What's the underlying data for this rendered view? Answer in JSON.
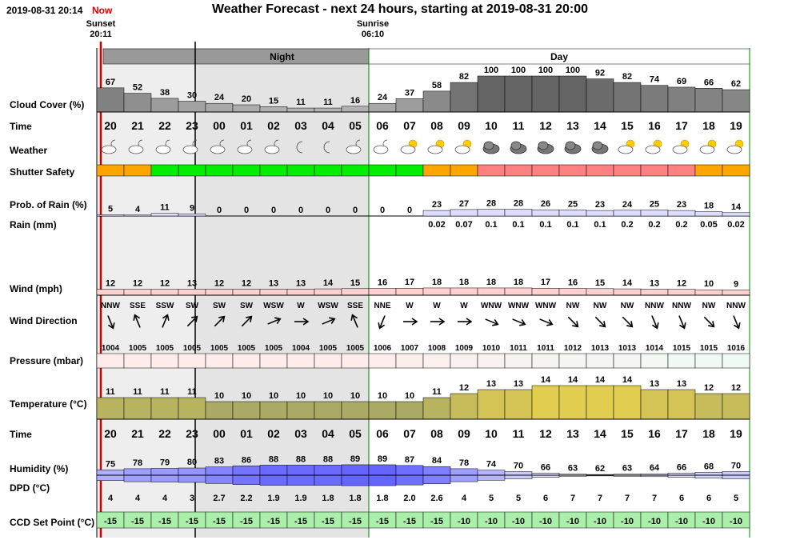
{
  "header": {
    "timestamp": "2019-08-31 20:14",
    "now_label": "Now"
  },
  "title": "Weather Forecast - next 24 hours, starting at 2019-08-31 20:00",
  "sun_events": [
    {
      "label": "Sunset",
      "time": "20:11"
    },
    {
      "label": "Sunrise",
      "time": "06:10"
    }
  ],
  "period_labels": {
    "night": "Night",
    "day": "Day"
  },
  "row_labels": {
    "cloud_cover": "Cloud Cover (%)",
    "time": "Time",
    "weather": "Weather",
    "shutter_safety": "Shutter Safety",
    "prob_rain": "Prob. of Rain (%)",
    "rain": "Rain (mm)",
    "wind": "Wind (mph)",
    "wind_direction": "Wind Direction",
    "pressure": "Pressure (mbar)",
    "temperature": "Temperature (°C)",
    "time2": "Time",
    "humidity": "Humidity (%)",
    "dpd": "DPD (°C)",
    "ccd": "CCD Set Point (°C)"
  },
  "chart_data": {
    "type": "table",
    "title": "Weather Forecast - next 24 hours, starting at 2019-08-31 20:00",
    "hours": [
      "20",
      "21",
      "22",
      "23",
      "00",
      "01",
      "02",
      "03",
      "04",
      "05",
      "06",
      "07",
      "08",
      "09",
      "10",
      "11",
      "12",
      "13",
      "14",
      "15",
      "16",
      "17",
      "18",
      "19"
    ],
    "night_range": [
      4,
      9
    ],
    "cloud_cover": [
      67,
      52,
      38,
      30,
      24,
      20,
      15,
      11,
      11,
      16,
      24,
      37,
      58,
      82,
      100,
      100,
      100,
      100,
      92,
      82,
      74,
      69,
      66,
      62
    ],
    "weather_icons": [
      "partly-cloudy-night-icon",
      "partly-cloudy-night-icon",
      "partly-cloudy-night-icon",
      "partly-cloudy-night-icon",
      "partly-cloudy-night-icon",
      "partly-cloudy-night-icon",
      "partly-cloudy-night-icon",
      "moon-icon",
      "moon-icon",
      "partly-cloudy-night-icon",
      "partly-cloudy-night-icon",
      "partly-cloudy-day-icon",
      "partly-cloudy-day-icon",
      "partly-cloudy-day-icon",
      "overcast-icon",
      "overcast-icon",
      "overcast-icon",
      "overcast-icon",
      "overcast-icon",
      "partly-cloudy-day-icon",
      "partly-cloudy-day-icon",
      "partly-cloudy-day-icon",
      "partly-cloudy-day-icon",
      "partly-cloudy-day-icon"
    ],
    "shutter_safety": [
      "caution",
      "caution",
      "safe",
      "safe",
      "safe",
      "safe",
      "safe",
      "safe",
      "safe",
      "safe",
      "safe",
      "safe",
      "caution",
      "caution",
      "unsafe",
      "unsafe",
      "unsafe",
      "unsafe",
      "unsafe",
      "unsafe",
      "unsafe",
      "unsafe",
      "caution",
      "caution"
    ],
    "shutter_colors": {
      "safe": "#00ee00",
      "caution": "#ffa500",
      "unsafe": "#ff8080"
    },
    "prob_rain": [
      5,
      4,
      11,
      9,
      0,
      0,
      0,
      0,
      0,
      0,
      0,
      0,
      23,
      27,
      28,
      28,
      26,
      25,
      23,
      24,
      25,
      23,
      18,
      14
    ],
    "rain_mm": [
      "",
      "",
      "",
      "",
      "",
      "",
      "",
      "",
      "",
      "",
      "",
      "",
      "0.02",
      "0.07",
      "0.1",
      "0.1",
      "0.1",
      "0.1",
      "0.1",
      "0.2",
      "0.2",
      "0.2",
      "0.05",
      "0.02"
    ],
    "wind_mph": [
      12,
      12,
      12,
      13,
      12,
      12,
      13,
      13,
      14,
      15,
      16,
      17,
      18,
      18,
      18,
      18,
      17,
      16,
      15,
      14,
      13,
      12,
      10,
      9
    ],
    "wind_direction": [
      "NNW",
      "SSE",
      "SSW",
      "SW",
      "SW",
      "SW",
      "WSW",
      "W",
      "WSW",
      "SSE",
      "NNE",
      "W",
      "W",
      "W",
      "WNW",
      "WNW",
      "WNW",
      "NW",
      "NW",
      "NW",
      "NNW",
      "NNW",
      "NW",
      "NNW"
    ],
    "pressure_mbar": [
      1004,
      1005,
      1005,
      1005,
      1005,
      1005,
      1005,
      1004,
      1005,
      1005,
      1006,
      1007,
      1008,
      1009,
      1010,
      1011,
      1011,
      1012,
      1013,
      1013,
      1014,
      1015,
      1015,
      1016
    ],
    "temperature_c": [
      11,
      11,
      11,
      11,
      10,
      10,
      10,
      10,
      10,
      10,
      10,
      10,
      11,
      12,
      13,
      13,
      14,
      14,
      14,
      14,
      13,
      13,
      12,
      12
    ],
    "humidity_pct": [
      75,
      78,
      79,
      80,
      83,
      86,
      88,
      88,
      88,
      89,
      89,
      87,
      84,
      78,
      74,
      70,
      66,
      63,
      62,
      63,
      64,
      66,
      68,
      70
    ],
    "dpd_c": [
      "4",
      "4",
      "4",
      "3",
      "2.7",
      "2.2",
      "1.9",
      "1.9",
      "1.8",
      "1.8",
      "1.8",
      "2.0",
      "2.6",
      "4",
      "5",
      "5",
      "6",
      "7",
      "7",
      "7",
      "7",
      "6",
      "6",
      "5"
    ],
    "ccd_set_point_c": [
      -15,
      -15,
      -15,
      -15,
      -15,
      -15,
      -15,
      -15,
      -15,
      -15,
      -15,
      -15,
      -15,
      -10,
      -10,
      -10,
      -10,
      -10,
      -10,
      -10,
      -10,
      -10,
      -10,
      -10
    ]
  }
}
